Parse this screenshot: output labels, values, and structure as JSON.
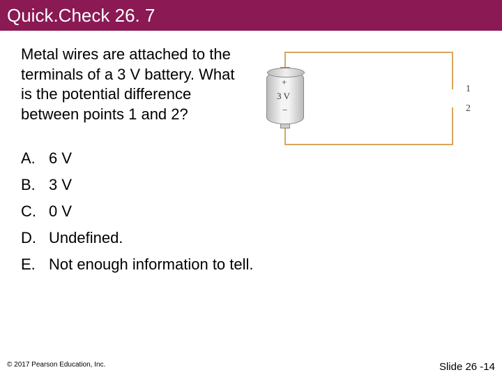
{
  "title": "Quick.Check 26. 7",
  "question": "Metal wires are attached to the terminals of a 3 V battery. What is the potential difference between points 1 and 2?",
  "battery": {
    "plus": "+",
    "label": "3 V",
    "minus": "−",
    "point1": "1",
    "point2": "2"
  },
  "options": [
    {
      "letter": "A.",
      "text": "6 V"
    },
    {
      "letter": "B.",
      "text": "3 V"
    },
    {
      "letter": "C.",
      "text": "0 V"
    },
    {
      "letter": "D.",
      "text": "Undefined."
    },
    {
      "letter": "E.",
      "text": "Not enough information to tell."
    }
  ],
  "footer": {
    "copyright": "© 2017 Pearson Education, Inc.",
    "slide": "Slide 26 -14"
  },
  "colors": {
    "titlebar_bg": "#8a1954",
    "wire": "#d9a65a"
  }
}
